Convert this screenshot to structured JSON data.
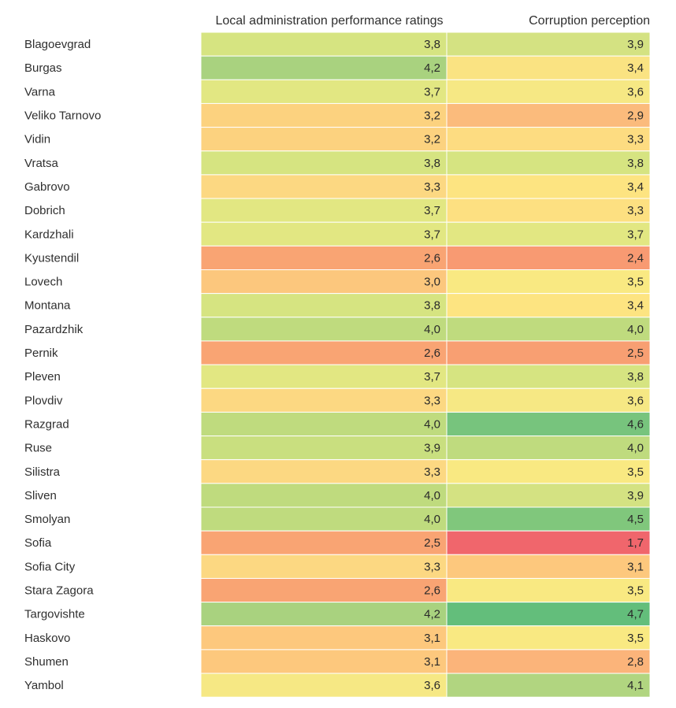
{
  "chart_data": {
    "type": "heatmap",
    "columns": [
      "Local administration performance ratings",
      "Corruption perception"
    ],
    "rows": [
      "Blagoevgrad",
      "Burgas",
      "Varna",
      "Veliko Tarnovo",
      "Vidin",
      "Vratsa",
      "Gabrovo",
      "Dobrich",
      "Kardzhali",
      "Kyustendil",
      "Lovech",
      "Montana",
      "Pazardzhik",
      "Pernik",
      "Pleven",
      "Plovdiv",
      "Razgrad",
      "Ruse",
      "Silistra",
      "Sliven",
      "Smolyan",
      "Sofia",
      "Sofia City",
      "Stara Zagora",
      "Targovishte",
      "Haskovo",
      "Shumen",
      "Yambol"
    ],
    "values": [
      [
        3.8,
        3.9
      ],
      [
        4.2,
        3.4
      ],
      [
        3.7,
        3.6
      ],
      [
        3.2,
        2.9
      ],
      [
        3.2,
        3.3
      ],
      [
        3.8,
        3.8
      ],
      [
        3.3,
        3.4
      ],
      [
        3.7,
        3.3
      ],
      [
        3.7,
        3.7
      ],
      [
        2.6,
        2.4
      ],
      [
        3.0,
        3.5
      ],
      [
        3.8,
        3.4
      ],
      [
        4.0,
        4.0
      ],
      [
        2.6,
        2.5
      ],
      [
        3.7,
        3.8
      ],
      [
        3.3,
        3.6
      ],
      [
        4.0,
        4.6
      ],
      [
        3.9,
        4.0
      ],
      [
        3.3,
        3.5
      ],
      [
        4.0,
        3.9
      ],
      [
        4.0,
        4.5
      ],
      [
        2.5,
        1.7
      ],
      [
        3.3,
        3.1
      ],
      [
        2.6,
        3.5
      ],
      [
        4.2,
        4.7
      ],
      [
        3.1,
        3.5
      ],
      [
        3.1,
        2.8
      ],
      [
        3.6,
        4.1
      ]
    ],
    "value_labels": [
      [
        "3,8",
        "3,9"
      ],
      [
        "4,2",
        "3,4"
      ],
      [
        "3,7",
        "3,6"
      ],
      [
        "3,2",
        "2,9"
      ],
      [
        "3,2",
        "3,3"
      ],
      [
        "3,8",
        "3,8"
      ],
      [
        "3,3",
        "3,4"
      ],
      [
        "3,7",
        "3,3"
      ],
      [
        "3,7",
        "3,7"
      ],
      [
        "2,6",
        "2,4"
      ],
      [
        "3,0",
        "3,5"
      ],
      [
        "3,8",
        "3,4"
      ],
      [
        "4,0",
        "4,0"
      ],
      [
        "2,6",
        "2,5"
      ],
      [
        "3,7",
        "3,8"
      ],
      [
        "3,3",
        "3,6"
      ],
      [
        "4,0",
        "4,6"
      ],
      [
        "3,9",
        "4,0"
      ],
      [
        "3,3",
        "3,5"
      ],
      [
        "4,0",
        "3,9"
      ],
      [
        "4,0",
        "4,5"
      ],
      [
        "2,5",
        "1,7"
      ],
      [
        "3,3",
        "3,1"
      ],
      [
        "2,6",
        "3,5"
      ],
      [
        "4,2",
        "4,7"
      ],
      [
        "3,1",
        "3,5"
      ],
      [
        "3,1",
        "2,8"
      ],
      [
        "3,6",
        "4,1"
      ]
    ],
    "cell_colors": [
      [
        "#d6e481",
        "#d4e282"
      ],
      [
        "#a9d27f",
        "#fae382"
      ],
      [
        "#e2e782",
        "#f6e884"
      ],
      [
        "#fcd27f",
        "#fbbb7c"
      ],
      [
        "#fcd27f",
        "#fddc81"
      ],
      [
        "#d6e481",
        "#d6e481"
      ],
      [
        "#fcd882",
        "#fde481"
      ],
      [
        "#e2e782",
        "#fde081"
      ],
      [
        "#e2e782",
        "#e2e782"
      ],
      [
        "#f9a473",
        "#f89a72"
      ],
      [
        "#fcc77d",
        "#f9e982"
      ],
      [
        "#d6e481",
        "#fde481"
      ],
      [
        "#bfdb7e",
        "#bfdb7e"
      ],
      [
        "#f9a473",
        "#f89f72"
      ],
      [
        "#e2e782",
        "#d6e481"
      ],
      [
        "#fcd882",
        "#f6e884"
      ],
      [
        "#bfdb7e",
        "#77c47d"
      ],
      [
        "#c9df7f",
        "#bfdb7e"
      ],
      [
        "#fcd882",
        "#f9e982"
      ],
      [
        "#bfdb7e",
        "#d4e282"
      ],
      [
        "#bfdb7e",
        "#80c77c"
      ],
      [
        "#f9a473",
        "#f0666c"
      ],
      [
        "#fcd882",
        "#fdc87d"
      ],
      [
        "#f9a473",
        "#f9e982"
      ],
      [
        "#a9d27f",
        "#63be7b"
      ],
      [
        "#fdc87d",
        "#f9e982"
      ],
      [
        "#fdc87d",
        "#fbb47a"
      ],
      [
        "#f6e884",
        "#b1d580"
      ]
    ],
    "grid": true,
    "legend": "none"
  }
}
